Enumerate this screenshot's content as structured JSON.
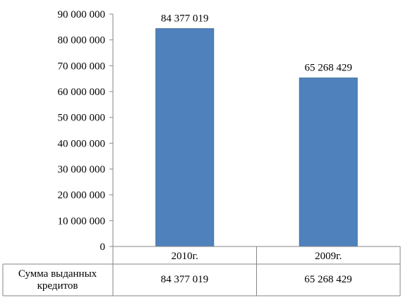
{
  "chart_data": {
    "type": "bar",
    "categories": [
      "2010г.",
      "2009г."
    ],
    "series": [
      {
        "name": "Сумма выданных кредитов",
        "values": [
          84377019,
          65268429
        ]
      }
    ],
    "data_labels": [
      "84 377 019",
      "65 268 429"
    ],
    "ylim": [
      0,
      90000000
    ],
    "yticks": [
      0,
      10000000,
      20000000,
      30000000,
      40000000,
      50000000,
      60000000,
      70000000,
      80000000,
      90000000
    ],
    "ytick_labels": [
      "0",
      "10 000 000",
      "20 000 000",
      "30 000 000",
      "40 000 000",
      "50 000 000",
      "60 000 000",
      "70 000 000",
      "80 000 000",
      "90 000 000"
    ],
    "grid": false,
    "legend": "data-table",
    "colors": {
      "bar": "#4f81bd",
      "bar_edge": "#41719c",
      "axis": "#868686"
    }
  },
  "data_table": {
    "row_label": "Сумма выданных\nкредитов",
    "values": [
      "84 377 019",
      "65 268 429"
    ]
  }
}
